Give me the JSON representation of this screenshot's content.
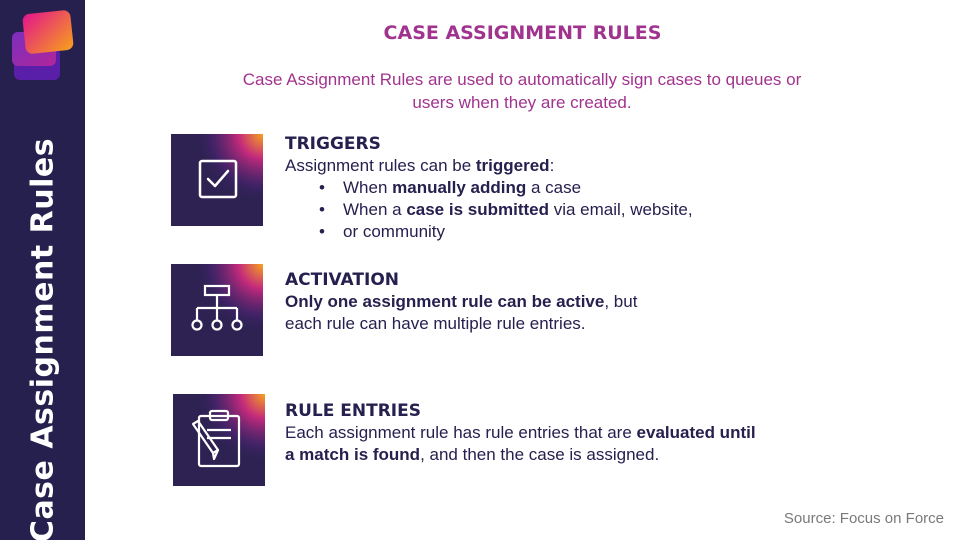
{
  "sidebar": {
    "vertical_title": "Case Assignment Rules"
  },
  "header": {
    "title": "CASE ASSIGNMENT RULES",
    "subtitle": "Case Assignment Rules are used to automatically sign cases to queues or users when they are created."
  },
  "sections": [
    {
      "icon": "checkbox-icon",
      "heading": "TRIGGERS",
      "intro_pre": "Assignment rules can be ",
      "intro_bold": "triggered",
      "intro_post": ":",
      "bullets": [
        {
          "pre": "When ",
          "bold": "manually adding",
          "post": " a case"
        },
        {
          "pre": "When a ",
          "bold": "case is submitted",
          "post": " via email, website,"
        },
        {
          "pre": "or community",
          "bold": "",
          "post": ""
        }
      ]
    },
    {
      "icon": "hierarchy-icon",
      "heading": "ACTIVATION",
      "bold_text": "Only one assignment rule can be active",
      "post_text": ", but",
      "line2": "each rule can have multiple rule entries."
    },
    {
      "icon": "clipboard-edit-icon",
      "heading": "RULE ENTRIES",
      "pre_text": "Each assignment rule has rule entries that are ",
      "bold_1": "evaluated until",
      "bold_2": "a match is found",
      "post_text": ", and then the case is assigned."
    }
  ],
  "bullet_glyph": "•",
  "footer": {
    "source": "Source: Focus on Force"
  },
  "colors": {
    "sidebar": "#26204f",
    "accent": "#a0338e",
    "text": "#26204f",
    "icon_bg": "#2d2252"
  }
}
